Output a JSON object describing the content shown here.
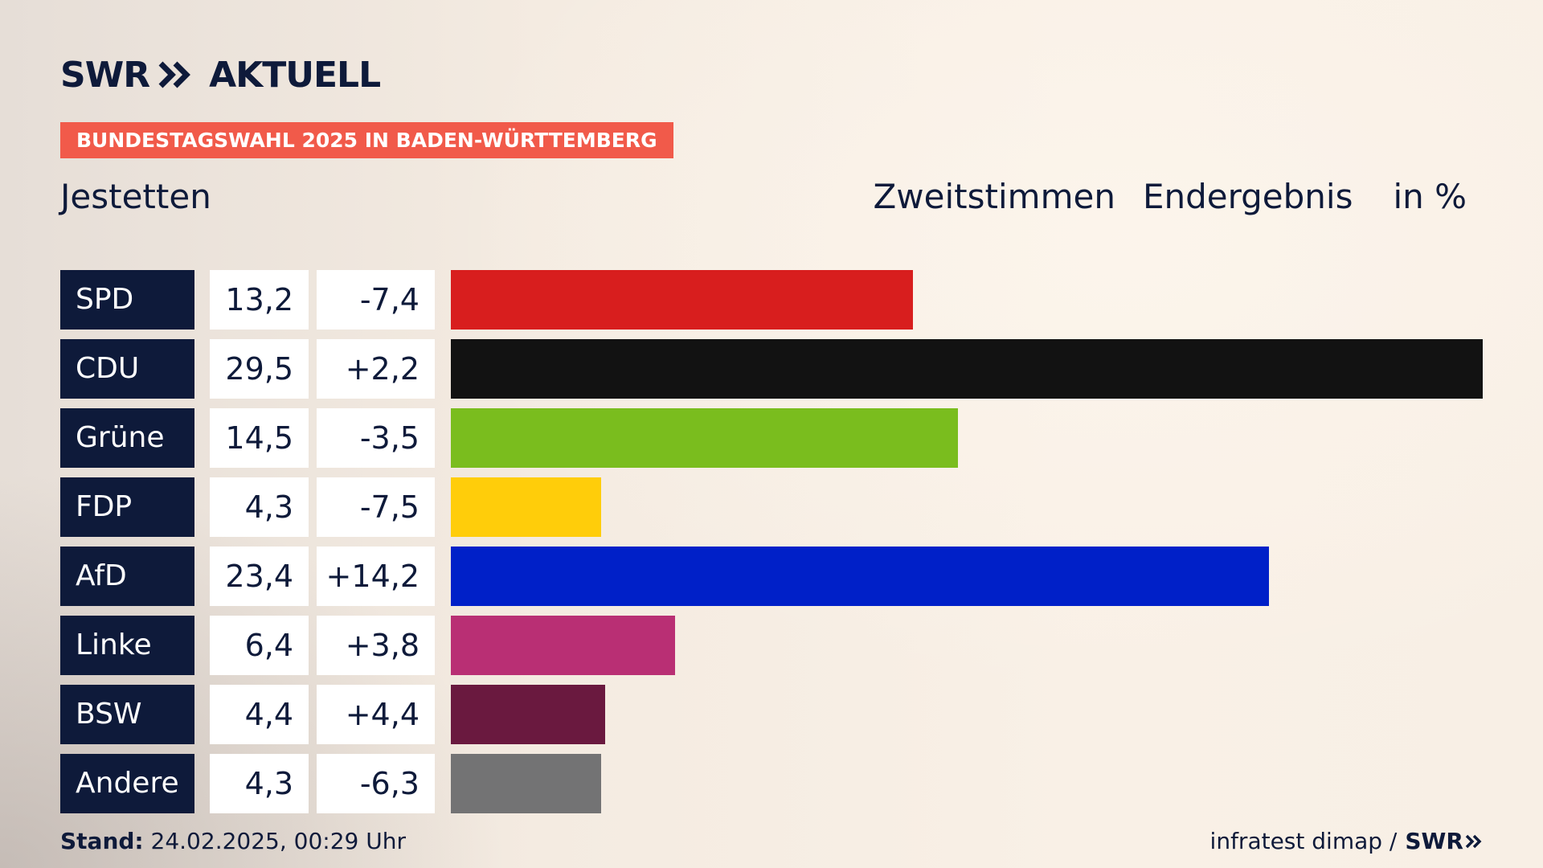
{
  "brand": {
    "logo_swr": "SWR",
    "logo_aktuell": "AKTUELL",
    "logo_icon": "double-chevron-right-icon"
  },
  "badge": "BUNDESTAGSWAHL 2025 IN BADEN-WÜRTTEMBERG",
  "place": "Jestetten",
  "header": {
    "vote_type": "Zweitstimmen",
    "result_type": "Endergebnis",
    "unit": "in %"
  },
  "footer": {
    "stand_label": "Stand:",
    "stand_value": "24.02.2025, 00:29 Uhr",
    "source": "infratest dimap /",
    "source_logo": "SWR"
  },
  "chart_data": {
    "type": "bar",
    "orientation": "horizontal",
    "categories": [
      "SPD",
      "CDU",
      "Grüne",
      "FDP",
      "AfD",
      "Linke",
      "BSW",
      "Andere"
    ],
    "values": [
      13.2,
      29.5,
      14.5,
      4.3,
      23.4,
      6.4,
      4.4,
      4.3
    ],
    "value_labels": [
      "13,2",
      "29,5",
      "14,5",
      "4,3",
      "23,4",
      "6,4",
      "4,4",
      "4,3"
    ],
    "changes": [
      -7.4,
      2.2,
      -3.5,
      -7.5,
      14.2,
      3.8,
      4.4,
      -6.3
    ],
    "change_labels": [
      "-7,4",
      "+2,2",
      "-3,5",
      "-7,5",
      "+14,2",
      "+3,8",
      "+4,4",
      "-6,3"
    ],
    "colors": [
      "#d81e1e",
      "#121212",
      "#7abd1e",
      "#ffcd0a",
      "#0020c8",
      "#b92f74",
      "#6a193f",
      "#737374"
    ],
    "title": "Zweitstimmen Endergebnis",
    "ylabel": "in %",
    "xlim": [
      0,
      29.5
    ],
    "grid": false,
    "legend": "none"
  }
}
